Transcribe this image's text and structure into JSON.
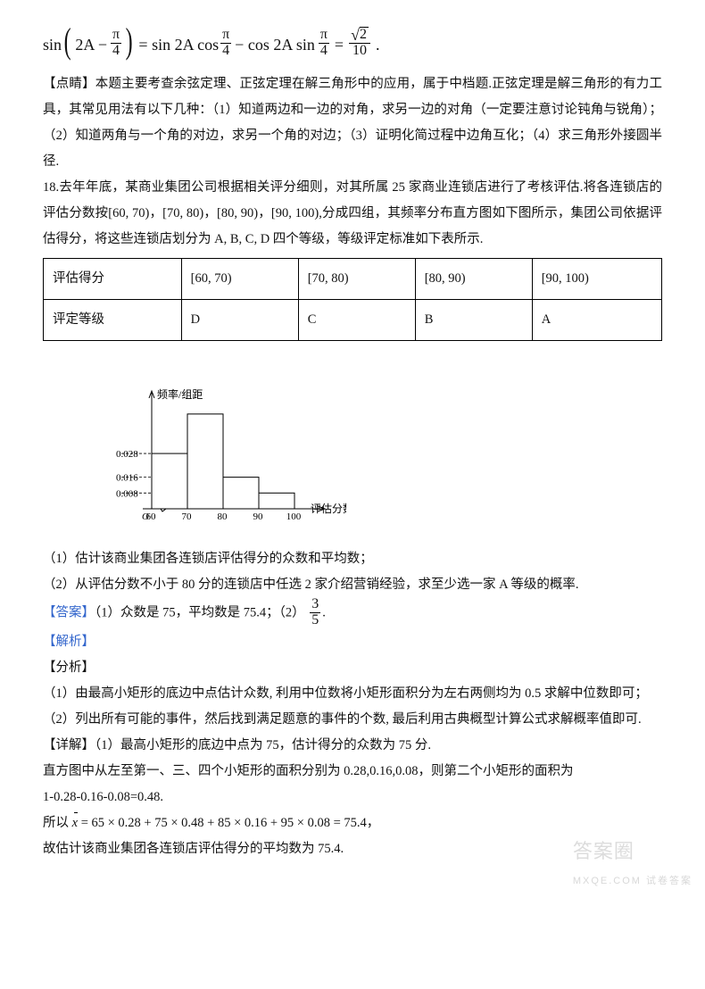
{
  "formula": {
    "lhs_sin": "sin",
    "lhs_inner_a": "2A −",
    "lhs_inner_frac_num": "π",
    "lhs_inner_frac_den": "4",
    "eq1": "= sin 2A cos",
    "frac2_num": "π",
    "frac2_den": "4",
    "mid": "− cos 2A sin",
    "frac3_num": "π",
    "frac3_den": "4",
    "eq2": "=",
    "result_num_sqrt": "2",
    "result_den": "10",
    "period": "."
  },
  "commentary": {
    "p1": "【点睛】本题主要考查余弦定理、正弦定理在解三角形中的应用，属于中档题.正弦定理是解三角形的有力工具，其常见用法有以下几种：（1）知道两边和一边的对角，求另一边的对角（一定要注意讨论钝角与锐角）；（2）知道两角与一个角的对边，求另一个角的对边；（3）证明化简过程中边角互化；（4）求三角形外接圆半径.",
    "p2": "18.去年年底，某商业集团公司根据相关评分细则，对其所属 25 家商业连锁店进行了考核评估.将各连锁店的评估分数按[60, 70)，[70, 80)，[80, 90)，[90, 100),分成四组，其频率分布直方图如下图所示，集团公司依据评估得分，将这些连锁店划分为 A, B, C, D 四个等级，等级评定标准如下表所示."
  },
  "table": {
    "headers": [
      "评估得分",
      "[60, 70)",
      "[70, 80)",
      "[80, 90)",
      "[90, 100)"
    ],
    "row2": [
      "评定等级",
      "D",
      "C",
      "B",
      "A"
    ]
  },
  "chart": {
    "y_label": "频率/组距",
    "x_label": "评估分数",
    "x_ticks": [
      "60",
      "70",
      "80",
      "90",
      "100"
    ],
    "y_ticks": [
      {
        "label": "0.028",
        "v": 0.028
      },
      {
        "label": "0.016",
        "v": 0.016
      },
      {
        "label": "0.008",
        "v": 0.008
      }
    ],
    "bars": [
      {
        "x": 60,
        "h": 0.028
      },
      {
        "x": 70,
        "h": 0.048
      },
      {
        "x": 80,
        "h": 0.016
      },
      {
        "x": 90,
        "h": 0.008
      }
    ],
    "y_max": 0.052,
    "axis_color": "#000000",
    "bar_fill": "#ffffff",
    "bar_stroke": "#000000",
    "tick_font_size": 11,
    "label_font_size": 12
  },
  "questions": {
    "q1": "（1）估计该商业集团各连锁店评估得分的众数和平均数；",
    "q2": "（2）从评估分数不小于 80 分的连锁店中任选 2 家介绍营销经验，求至少选一家 A 等级的概率."
  },
  "answer": {
    "label": "【答案】",
    "body1": "（1）众数是 75，平均数是 75.4；（2）",
    "frac_num": "3",
    "frac_den": "5",
    "period": "."
  },
  "jiexi_label": "【解析】",
  "fenxi_label": "【分析】",
  "fenxi": {
    "f1": "（1）由最高小矩形的底边中点估计众数, 利用中位数将小矩形面积分为左右两侧均为 0.5 求解中位数即可；",
    "f2": "（2）列出所有可能的事件，然后找到满足题意的事件的个数, 最后利用古典概型计算公式求解概率值即可."
  },
  "xiangjie": {
    "p1": "【详解】（1）最高小矩形的底边中点为 75，估计得分的众数为 75 分.",
    "p2": "直方图中从左至第一、三、四个小矩形的面积分别为 0.28,0.16,0.08，则第二个小矩形的面积为",
    "p3": "1-0.28-0.16-0.08=0.48.",
    "p4a": "所以 ",
    "p4b": " = 65 × 0.28 + 75 × 0.48 + 85 × 0.16 + 95 × 0.08 = 75.4，",
    "p5": "故估计该商业集团各连锁店评估得分的平均数为 75.4."
  },
  "watermark": {
    "big": "答案圈",
    "small": " MXQE.COM 试卷答案"
  }
}
